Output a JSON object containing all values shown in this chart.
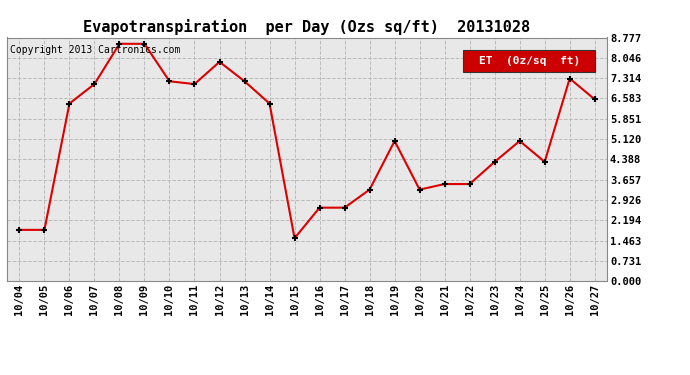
{
  "title": "Evapotranspiration  per Day (Ozs sq/ft)  20131028",
  "copyright": "Copyright 2013 Cartronics.com",
  "legend_label": "ET  (0z/sq  ft)",
  "x_labels": [
    "10/04",
    "10/05",
    "10/06",
    "10/07",
    "10/08",
    "10/09",
    "10/10",
    "10/11",
    "10/12",
    "10/13",
    "10/14",
    "10/15",
    "10/16",
    "10/17",
    "10/18",
    "10/19",
    "10/20",
    "10/21",
    "10/22",
    "10/23",
    "10/24",
    "10/25",
    "10/26",
    "10/27"
  ],
  "y_values": [
    1.85,
    1.85,
    6.4,
    7.1,
    8.55,
    8.55,
    7.2,
    7.1,
    7.9,
    7.2,
    6.4,
    1.55,
    2.65,
    2.65,
    3.3,
    5.05,
    3.3,
    3.5,
    3.5,
    4.3,
    5.05,
    4.3,
    7.3,
    6.55
  ],
  "y_ticks": [
    0.0,
    0.731,
    1.463,
    2.194,
    2.926,
    3.657,
    4.388,
    5.12,
    5.851,
    6.583,
    7.314,
    8.046,
    8.777
  ],
  "ylim": [
    0.0,
    8.777
  ],
  "line_color": "#dd0000",
  "marker": "+",
  "marker_color": "#000000",
  "marker_size": 5,
  "marker_linewidth": 1.5,
  "line_width": 1.5,
  "grid_color": "#bbbbbb",
  "bg_color": "#ffffff",
  "plot_bg_color": "#e8e8e8",
  "title_fontsize": 11,
  "tick_fontsize": 7.5,
  "copyright_fontsize": 7,
  "legend_bg": "#cc0000",
  "legend_text_color": "#ffffff",
  "legend_fontsize": 8
}
